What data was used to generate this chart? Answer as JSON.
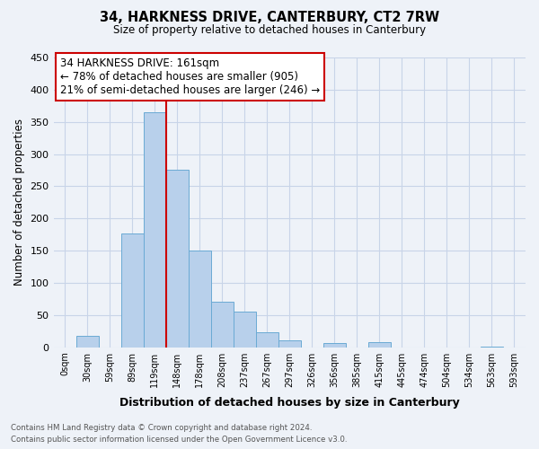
{
  "title": "34, HARKNESS DRIVE, CANTERBURY, CT2 7RW",
  "subtitle": "Size of property relative to detached houses in Canterbury",
  "xlabel": "Distribution of detached houses by size in Canterbury",
  "ylabel": "Number of detached properties",
  "footer_line1": "Contains HM Land Registry data © Crown copyright and database right 2024.",
  "footer_line2": "Contains public sector information licensed under the Open Government Licence v3.0.",
  "bin_labels": [
    "0sqm",
    "30sqm",
    "59sqm",
    "89sqm",
    "119sqm",
    "148sqm",
    "178sqm",
    "208sqm",
    "237sqm",
    "267sqm",
    "297sqm",
    "326sqm",
    "356sqm",
    "385sqm",
    "415sqm",
    "445sqm",
    "474sqm",
    "504sqm",
    "534sqm",
    "563sqm",
    "593sqm"
  ],
  "bar_values": [
    0,
    18,
    0,
    177,
    365,
    275,
    150,
    70,
    55,
    23,
    10,
    0,
    6,
    0,
    8,
    0,
    0,
    0,
    0,
    1,
    0
  ],
  "bar_color": "#b8d0eb",
  "bar_edge_color": "#6aaad4",
  "grid_color": "#c8d4e8",
  "background_color": "#eef2f8",
  "annotation_box_color": "#ffffff",
  "annotation_border_color": "#cc0000",
  "annotation_line1": "34 HARKNESS DRIVE: 161sqm",
  "annotation_line2": "← 78% of detached houses are smaller (905)",
  "annotation_line3": "21% of semi-detached houses are larger (246) →",
  "vline_x": 5,
  "vline_color": "#cc0000",
  "ylim": [
    0,
    450
  ],
  "yticks": [
    0,
    50,
    100,
    150,
    200,
    250,
    300,
    350,
    400,
    450
  ]
}
